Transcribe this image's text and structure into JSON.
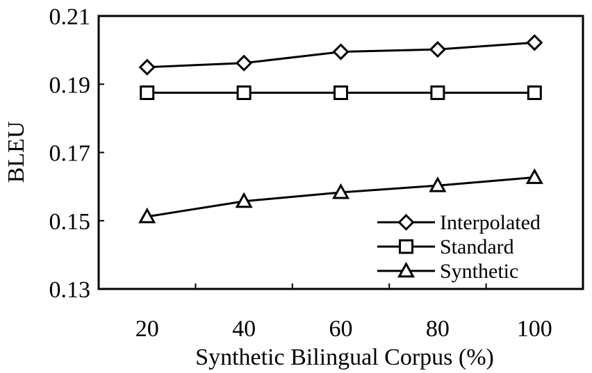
{
  "chart_data": {
    "type": "line",
    "title": "",
    "xlabel": "Synthetic Bilingual Corpus (%)",
    "ylabel": "BLEU",
    "x": [
      20,
      40,
      60,
      80,
      100
    ],
    "x_tick_labels": [
      "20",
      "40",
      "60",
      "80",
      "100"
    ],
    "y_tick_labels": [
      "0.21",
      "0.19",
      "0.17",
      "0.15",
      "0.13"
    ],
    "ylim": [
      0.13,
      0.21
    ],
    "y_ticks": [
      0.13,
      0.15,
      0.17,
      0.19,
      0.21
    ],
    "grid": false,
    "legend_position": "bottom-right",
    "series": [
      {
        "name": "Interpolated",
        "marker": "diamond",
        "values": [
          0.195,
          0.1962,
          0.1995,
          0.2002,
          0.2022
        ]
      },
      {
        "name": "Standard",
        "marker": "square",
        "values": [
          0.1875,
          0.1875,
          0.1875,
          0.1875,
          0.1875
        ]
      },
      {
        "name": "Synthetic",
        "marker": "triangle",
        "values": [
          0.1512,
          0.1557,
          0.1583,
          0.1603,
          0.1627
        ]
      }
    ]
  }
}
